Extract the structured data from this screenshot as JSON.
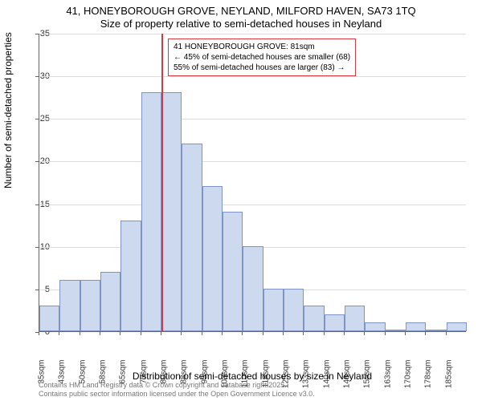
{
  "chart": {
    "type": "histogram",
    "title_line1": "41, HONEYBOROUGH GROVE, NEYLAND, MILFORD HAVEN, SA73 1TQ",
    "title_line2": "Size of property relative to semi-detached houses in Neyland",
    "title_fontsize": 13,
    "xlabel": "Distribution of semi-detached houses by size in Neyland",
    "ylabel": "Number of semi-detached properties",
    "label_fontsize": 12,
    "background_color": "#ffffff",
    "grid_color": "#dddddd",
    "axis_color": "#666666",
    "bar_fill": "#cdd9ee",
    "bar_border": "#7f93c5",
    "ylim": [
      0,
      35
    ],
    "ytick_step": 5,
    "yticks": [
      0,
      5,
      10,
      15,
      20,
      25,
      30,
      35
    ],
    "xticks": [
      "35sqm",
      "43sqm",
      "50sqm",
      "58sqm",
      "65sqm",
      "73sqm",
      "80sqm",
      "88sqm",
      "95sqm",
      "103sqm",
      "110sqm",
      "118sqm",
      "125sqm",
      "133sqm",
      "140sqm",
      "148sqm",
      "155sqm",
      "163sqm",
      "170sqm",
      "178sqm",
      "185sqm"
    ],
    "values": [
      3,
      6,
      6,
      7,
      13,
      28,
      28,
      22,
      17,
      14,
      10,
      5,
      5,
      3,
      2,
      3,
      1,
      0,
      1,
      0,
      1
    ],
    "marker": {
      "bin_index": 6,
      "color": "#d8383f",
      "label_line1": "41 HONEYBOROUGH GROVE: 81sqm",
      "label_line2": "← 45% of semi-detached houses are smaller (68)",
      "label_line3": "55% of semi-detached houses are larger (83) →",
      "box_border": "#d8383f"
    },
    "footer_line1": "Contains HM Land Registry data © Crown copyright and database right 2025.",
    "footer_line2": "Contains public sector information licensed under the Open Government Licence v3.0."
  }
}
